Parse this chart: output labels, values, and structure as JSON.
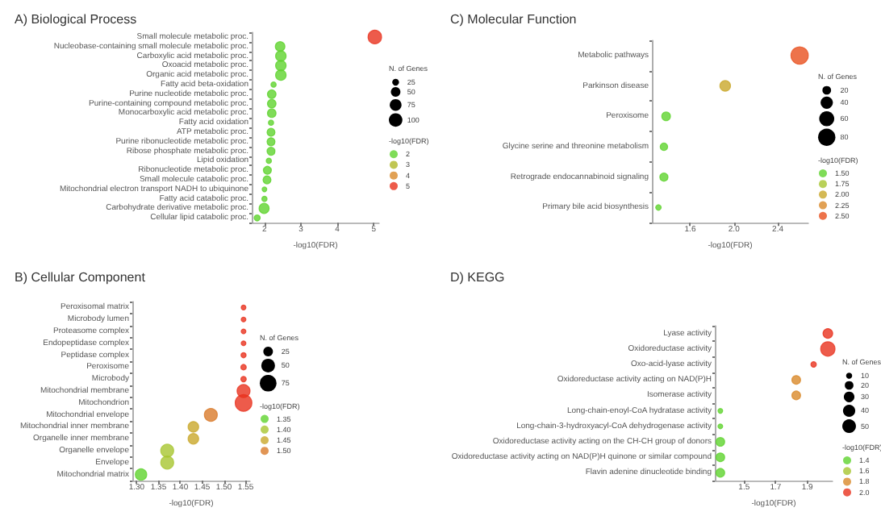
{
  "chart_data": [
    {
      "type": "bubble",
      "orientation": "horizontal",
      "title": "A) Biological Process",
      "xlabel": "-log10(FDR)",
      "legend_title": "-log10(FDR)",
      "annotations": [
        "N. of Genes"
      ],
      "legend": "right",
      "size_legend": [
        25,
        50,
        75,
        100
      ],
      "categories": [
        "Small molecule metabolic proc.",
        "Nucleobase-containing small molecule metabolic proc.",
        "Carboxylic acid metabolic proc.",
        "Oxoacid metabolic proc.",
        "Organic acid metabolic proc.",
        "Fatty acid beta-oxidation",
        "Purine nucleotide metabolic proc.",
        "Purine-containing compound metabolic proc.",
        "Monocarboxylic acid metabolic proc.",
        "Fatty acid oxidation",
        "ATP metabolic proc.",
        "Purine ribonucleotide metabolic proc.",
        "Ribose phosphate metabolic proc.",
        "Lipid oxidation",
        "Ribonucleotide metabolic proc.",
        "Small molecule catabolic proc.",
        "Mitochondrial electron transport NADH to ubiquinone",
        "Fatty acid catabolic proc.",
        "Carbohydrate derivative metabolic proc.",
        "Cellular lipid catabolic proc."
      ],
      "series": [
        {
          "name": "2",
          "color": "#5fd32e",
          "values": [
            null,
            2.43,
            2.45,
            2.45,
            2.45,
            2.25,
            2.2,
            2.2,
            2.2,
            2.18,
            2.18,
            2.18,
            2.18,
            2.12,
            2.08,
            2.07,
            2.0,
            2.0,
            1.99,
            1.8
          ],
          "sizes": [
            null,
            50,
            60,
            60,
            60,
            15,
            40,
            40,
            40,
            15,
            35,
            35,
            35,
            15,
            35,
            35,
            12,
            15,
            55,
            20
          ]
        },
        {
          "name": "3",
          "color": "#b0b828",
          "values": [
            null,
            null,
            null,
            null,
            null,
            null,
            null,
            null,
            null,
            null,
            null,
            null,
            null,
            null,
            null,
            null,
            null,
            null,
            null,
            null
          ]
        },
        {
          "name": "4",
          "color": "#d98a2a",
          "values": [
            null,
            null,
            null,
            null,
            null,
            null,
            null,
            null,
            null,
            null,
            null,
            null,
            null,
            null,
            null,
            null,
            null,
            null,
            null,
            null
          ]
        },
        {
          "name": "5",
          "color": "#e8321e",
          "values": [
            5.03,
            null,
            null,
            null,
            null,
            null,
            null,
            null,
            null,
            null,
            null,
            null,
            null,
            null,
            null,
            null,
            null,
            null,
            null,
            null
          ],
          "sizes": [
            100,
            null,
            null,
            null,
            null,
            null,
            null,
            null,
            null,
            null,
            null,
            null,
            null,
            null,
            null,
            null,
            null,
            null,
            null,
            null
          ]
        }
      ],
      "xlim": [
        1.65,
        5.15
      ],
      "xticks": [
        2,
        3,
        4,
        5
      ]
    },
    {
      "type": "bubble",
      "orientation": "horizontal",
      "title": "C) Molecular Function",
      "xlabel": "-log10(FDR)",
      "legend_title": "-log10(FDR)",
      "annotations": [
        "N. of Genes"
      ],
      "legend": "right",
      "size_legend": [
        20,
        40,
        60,
        80
      ],
      "categories": [
        "Metabolic pathways",
        "Parkinson disease",
        "Peroxisome",
        "Glycine serine and threonine metabolism",
        "Retrograde endocannabinoid signaling",
        "Primary bile acid biosynthesis"
      ],
      "series": [
        {
          "name": "1.50",
          "color": "#5fd32e",
          "values": [
            null,
            null,
            1.38,
            1.36,
            1.36,
            1.31
          ],
          "sizes": [
            null,
            null,
            20,
            15,
            18,
            8
          ]
        },
        {
          "name": "1.75",
          "color": "#a8c531",
          "values": [
            null,
            null,
            null,
            null,
            null,
            null
          ]
        },
        {
          "name": "2.00",
          "color": "#c9a82a",
          "values": [
            null,
            1.92,
            null,
            null,
            null,
            null
          ],
          "sizes": [
            null,
            30,
            null,
            null,
            null,
            null
          ]
        },
        {
          "name": "2.25",
          "color": "#d98a2a",
          "values": [
            null,
            null,
            null,
            null,
            null,
            null
          ]
        },
        {
          "name": "2.50",
          "color": "#e8501e",
          "values": [
            2.6,
            null,
            null,
            null,
            null,
            null
          ],
          "sizes": [
            80,
            null,
            null,
            null,
            null,
            null
          ]
        }
      ],
      "xlim": [
        1.25,
        2.68
      ],
      "xticks": [
        1.6,
        {
          "value": 2,
          "label": "2.0"
        },
        2.4
      ]
    },
    {
      "type": "bubble",
      "orientation": "horizontal",
      "title": "B) Cellular Component",
      "xlabel": "-log10(FDR)",
      "legend_title": "-log10(FDR)",
      "annotations": [
        "N. of Genes"
      ],
      "legend": "right",
      "size_legend": [
        25,
        50,
        75
      ],
      "categories": [
        "Peroxisomal matrix",
        "Microbody lumen",
        "Proteasome complex",
        "Endopeptidase complex",
        "Peptidase complex",
        "Peroxisome",
        "Microbody",
        "Mitochondrial membrane",
        "Mitochondrion",
        "Mitochondrial envelope",
        "Mitochondrial inner membrane",
        "Organelle inner membrane",
        "Organelle envelope",
        "Envelope",
        "Mitochondrial matrix"
      ],
      "series": [
        {
          "name": "1.35",
          "color": "#5fd32e",
          "values": [
            null,
            null,
            null,
            null,
            null,
            null,
            null,
            null,
            null,
            null,
            null,
            null,
            null,
            null,
            1.31
          ],
          "sizes": [
            null,
            null,
            null,
            null,
            null,
            null,
            null,
            null,
            null,
            null,
            null,
            null,
            null,
            null,
            35
          ]
        },
        {
          "name": "1.40",
          "color": "#a8c531",
          "values": [
            null,
            null,
            null,
            null,
            null,
            null,
            null,
            null,
            null,
            null,
            null,
            null,
            1.37,
            1.37,
            null
          ],
          "sizes": [
            null,
            null,
            null,
            null,
            null,
            null,
            null,
            null,
            null,
            null,
            null,
            null,
            45,
            45,
            null
          ]
        },
        {
          "name": "1.45",
          "color": "#c9a82a",
          "values": [
            null,
            null,
            null,
            null,
            null,
            null,
            null,
            null,
            null,
            null,
            1.43,
            1.43,
            null,
            null,
            null
          ],
          "sizes": [
            null,
            null,
            null,
            null,
            null,
            null,
            null,
            null,
            null,
            null,
            30,
            30,
            null,
            null,
            null
          ]
        },
        {
          "name": "1.50",
          "color": "#d97a2a",
          "values": [
            1.545,
            1.545,
            1.545,
            1.545,
            1.545,
            1.545,
            1.545,
            1.545,
            1.545,
            1.47,
            null,
            null,
            null,
            null,
            null
          ],
          "sizes": [
            6,
            6,
            6,
            6,
            7,
            8,
            8,
            45,
            75,
            45,
            null,
            null,
            null,
            null,
            null
          ],
          "colors": [
            "#e8321e",
            "#e8321e",
            "#e8321e",
            "#e8321e",
            "#e8321e",
            "#e8321e",
            "#e8321e",
            "#e8321e",
            "#e8321e",
            "#d97a2a",
            null,
            null,
            null,
            null,
            null
          ]
        }
      ],
      "xlim": [
        1.29,
        1.56
      ],
      "xticks": [
        {
          "value": 1.3,
          "label": "1.30"
        },
        1.35,
        {
          "value": 1.4,
          "label": "1.40"
        },
        1.45,
        {
          "value": 1.5,
          "label": "1.50"
        },
        1.55
      ]
    },
    {
      "type": "bubble",
      "orientation": "horizontal",
      "title": "D) KEGG",
      "xlabel": "-log10(FDR)",
      "legend_title": "-log10(FDR)",
      "annotations": [
        "N. of Genes"
      ],
      "legend": "right",
      "size_legend": [
        10,
        20,
        30,
        40,
        50
      ],
      "categories": [
        "Lyase activity",
        "Oxidoreductase activity",
        "Oxo-acid-lyase activity",
        "Oxidoreductase activity acting on NAD(P)H",
        "Isomerase activity",
        "Long-chain-enoyl-CoA hydratase activity",
        "Long-chain-3-hydroxyacyl-CoA dehydrogenase activity",
        "Oxidoreductase activity acting on the CH-CH group of donors",
        "Oxidoreductase activity acting on NAD(P)H quinone or similar compound",
        "Flavin adenine dinucleotide binding"
      ],
      "series": [
        {
          "name": "1.4",
          "color": "#5fd32e",
          "values": [
            null,
            null,
            null,
            null,
            null,
            1.35,
            1.35,
            1.35,
            1.35,
            1.35
          ],
          "sizes": [
            null,
            null,
            null,
            null,
            null,
            6,
            6,
            20,
            20,
            20
          ]
        },
        {
          "name": "1.6",
          "color": "#a8c531",
          "values": [
            null,
            null,
            null,
            null,
            null,
            null,
            null,
            null,
            null,
            null
          ]
        },
        {
          "name": "1.8",
          "color": "#d98a2a",
          "values": [
            null,
            null,
            null,
            1.83,
            1.83,
            null,
            null,
            null,
            null,
            null
          ],
          "sizes": [
            null,
            null,
            null,
            20,
            20,
            null,
            null,
            null,
            null,
            null
          ]
        },
        {
          "name": "2.0",
          "color": "#e8321e",
          "values": [
            2.03,
            2.03,
            1.94,
            null,
            null,
            null,
            null,
            null,
            null,
            null
          ],
          "sizes": [
            25,
            55,
            8,
            null,
            null,
            null,
            null,
            null,
            null,
            null
          ]
        }
      ],
      "xlim": [
        1.315,
        2.06
      ],
      "xticks": [
        1.5,
        1.7,
        1.9
      ]
    }
  ]
}
